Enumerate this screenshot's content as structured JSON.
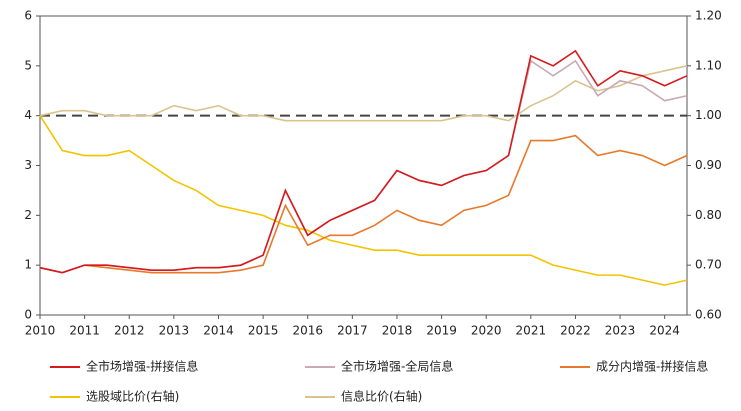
{
  "chart_data": {
    "type": "line",
    "x": [
      2010,
      2010.5,
      2011,
      2011.5,
      2012,
      2012.5,
      2013,
      2013.5,
      2014,
      2014.5,
      2015,
      2015.5,
      2016,
      2016.5,
      2017,
      2017.5,
      2018,
      2018.5,
      2019,
      2019.5,
      2020,
      2020.5,
      2021,
      2021.5,
      2022,
      2022.5,
      2023,
      2023.5,
      2024,
      2024.5
    ],
    "xlim": [
      2010,
      2024.5
    ],
    "xticks": [
      2010,
      2011,
      2012,
      2013,
      2014,
      2015,
      2016,
      2017,
      2018,
      2019,
      2020,
      2021,
      2022,
      2023,
      2024
    ],
    "ylim": [
      0,
      6
    ],
    "yticks": [
      0,
      1,
      2,
      3,
      4,
      5,
      6
    ],
    "y2lim": [
      0.6,
      1.2
    ],
    "y2ticks": [
      {
        "value": 0.6,
        "label": "0.60"
      },
      {
        "value": 0.7,
        "label": "0.70"
      },
      {
        "value": 0.8,
        "label": "0.80"
      },
      {
        "value": 0.9,
        "label": "0.90"
      },
      {
        "value": 1.0,
        "label": "1.00"
      },
      {
        "value": 1.1,
        "label": "1.10"
      },
      {
        "value": 1.2,
        "label": "1.20"
      }
    ],
    "y2_reference": 1.0,
    "series": [
      {
        "name": "全市场增强-拼接信息",
        "color": "#d7191c",
        "values": [
          0.95,
          0.85,
          1.0,
          1.0,
          0.95,
          0.9,
          0.9,
          0.95,
          0.95,
          1.0,
          1.2,
          2.5,
          1.6,
          1.9,
          2.1,
          2.3,
          2.9,
          2.7,
          2.6,
          2.8,
          2.9,
          3.2,
          5.2,
          5.0,
          5.3,
          4.6,
          4.9,
          4.8,
          4.6,
          4.8
        ]
      },
      {
        "name": "全市场增强-全局信息",
        "color": "#c9aab4",
        "values": [
          0.95,
          0.85,
          1.0,
          1.0,
          0.95,
          0.9,
          0.9,
          0.95,
          0.95,
          1.0,
          1.2,
          2.5,
          1.6,
          1.9,
          2.1,
          2.3,
          2.9,
          2.7,
          2.6,
          2.8,
          2.9,
          3.2,
          5.1,
          4.8,
          5.1,
          4.4,
          4.7,
          4.6,
          4.3,
          4.4
        ]
      },
      {
        "name": "成分内增强-拼接信息",
        "color": "#e8792a",
        "values": [
          0.95,
          0.85,
          1.0,
          0.95,
          0.9,
          0.85,
          0.85,
          0.85,
          0.85,
          0.9,
          1.0,
          2.2,
          1.4,
          1.6,
          1.6,
          1.8,
          2.1,
          1.9,
          1.8,
          2.1,
          2.2,
          2.4,
          3.5,
          3.5,
          3.6,
          3.2,
          3.3,
          3.2,
          3.0,
          3.2
        ]
      },
      {
        "name": "选股域比价(右轴)",
        "color": "#f2c400",
        "axis": "y2",
        "values": [
          1.0,
          0.93,
          0.92,
          0.92,
          0.93,
          0.9,
          0.87,
          0.85,
          0.82,
          0.81,
          0.8,
          0.78,
          0.77,
          0.75,
          0.74,
          0.73,
          0.73,
          0.72,
          0.72,
          0.72,
          0.72,
          0.72,
          0.72,
          0.7,
          0.69,
          0.68,
          0.68,
          0.67,
          0.66,
          0.67
        ]
      },
      {
        "name": "信息比价(右轴)",
        "color": "#d8c48e",
        "axis": "y2",
        "values": [
          1.0,
          1.01,
          1.01,
          1.0,
          1.0,
          1.0,
          1.02,
          1.01,
          1.02,
          1.0,
          1.0,
          0.99,
          0.99,
          0.99,
          0.99,
          0.99,
          0.99,
          0.99,
          0.99,
          1.0,
          1.0,
          0.99,
          1.02,
          1.04,
          1.07,
          1.05,
          1.06,
          1.08,
          1.09,
          1.1
        ]
      }
    ]
  }
}
